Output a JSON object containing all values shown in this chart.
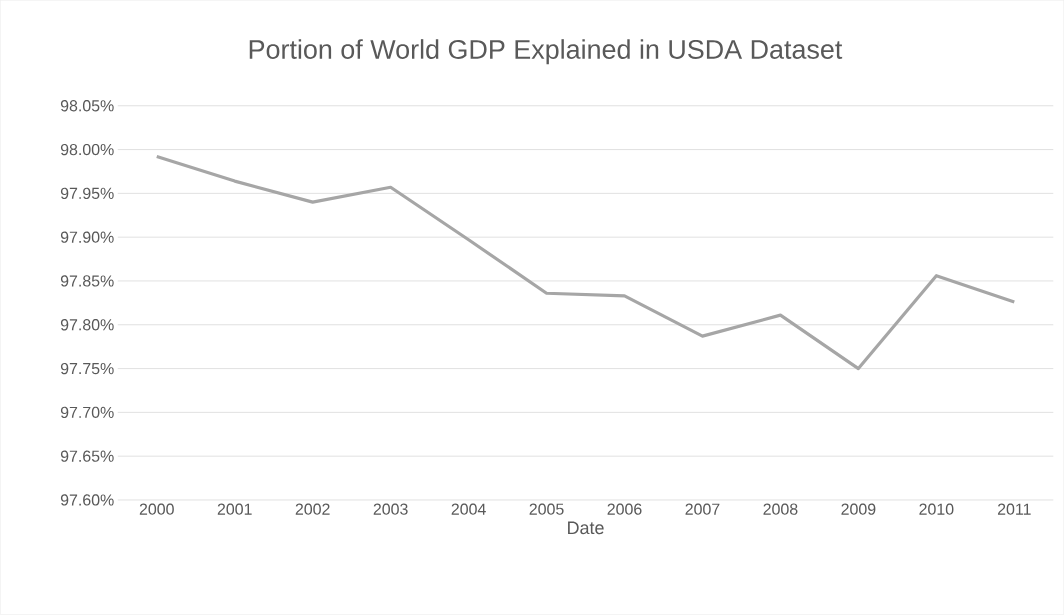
{
  "chart_data": {
    "type": "line",
    "title": "Portion of World GDP Explained in USDA Dataset",
    "xlabel": "Date",
    "categories": [
      "2000",
      "2001",
      "2002",
      "2003",
      "2004",
      "2005",
      "2006",
      "2007",
      "2008",
      "2009",
      "2010",
      "2011"
    ],
    "series": [
      {
        "color": "#a6a6a6",
        "values": [
          97.992,
          97.964,
          97.94,
          97.957,
          97.897,
          97.836,
          97.833,
          97.787,
          97.811,
          97.75,
          97.856,
          97.826
        ]
      }
    ],
    "ylim": [
      97.6,
      98.05
    ],
    "yticks": [
      {
        "value": 97.6,
        "label": "97.60%"
      },
      {
        "value": 97.65,
        "label": "97.65%"
      },
      {
        "value": 97.7,
        "label": "97.70%"
      },
      {
        "value": 97.75,
        "label": "97.75%"
      },
      {
        "value": 97.8,
        "label": "97.80%"
      },
      {
        "value": 97.85,
        "label": "97.85%"
      },
      {
        "value": 97.9,
        "label": "97.90%"
      },
      {
        "value": 97.95,
        "label": "97.95%"
      },
      {
        "value": 98.0,
        "label": "98.00%"
      },
      {
        "value": 98.05,
        "label": "98.05%"
      }
    ],
    "grid": "y",
    "line_style": "solid"
  }
}
